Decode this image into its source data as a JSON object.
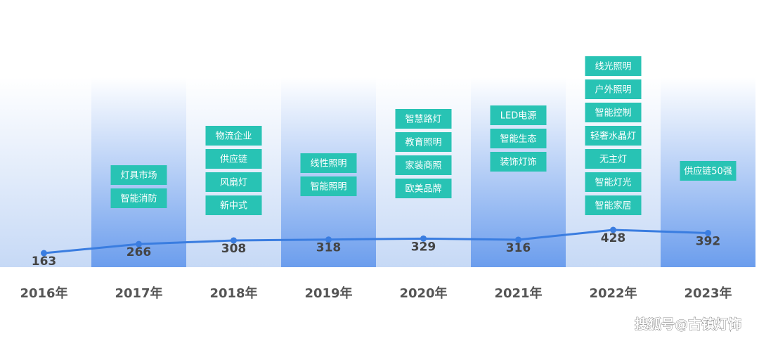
{
  "chart_data": {
    "type": "line",
    "categories": [
      "2016年",
      "2017年",
      "2018年",
      "2019年",
      "2020年",
      "2021年",
      "2022年",
      "2023年"
    ],
    "series": [
      {
        "color": "#3a7de0",
        "values": [
          163,
          266,
          308,
          318,
          329,
          316,
          428,
          392
        ]
      }
    ],
    "tags": [
      [],
      [
        "灯具市场",
        "智能消防"
      ],
      [
        "物流企业",
        "供应链",
        "风扇灯",
        "新中式"
      ],
      [
        "线性照明",
        "智能照明"
      ],
      [
        "智慧路灯",
        "教育照明",
        "家装商照",
        "欧美品牌"
      ],
      [
        "LED电源",
        "智能生态",
        "装饰灯饰"
      ],
      [
        "线光照明",
        "户外照明",
        "智能控制",
        "轻奢水晶灯",
        "无主灯",
        "智能灯光",
        "智能家居"
      ],
      [
        "供应链50强"
      ]
    ],
    "tag_color": "#28c3b4"
  },
  "watermark": "搜狐号@古镇灯饰"
}
